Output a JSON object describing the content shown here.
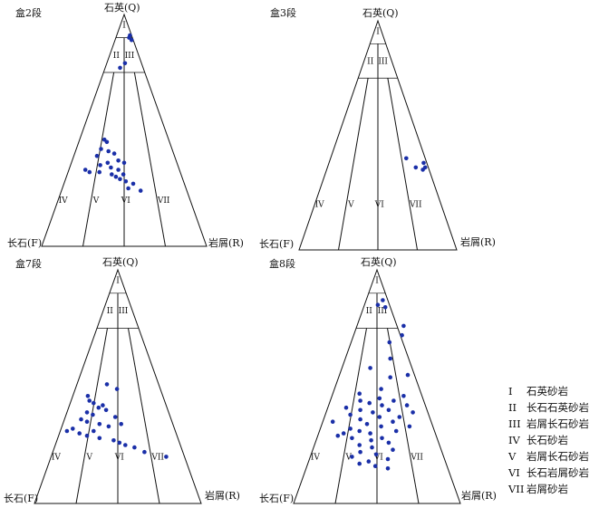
{
  "figure": {
    "corners": {
      "top": "石英(Q)",
      "left": "长石(F)",
      "right": "岩屑(R)"
    },
    "zones": [
      "I",
      "II",
      "III",
      "IV",
      "V",
      "VI",
      "VII"
    ]
  },
  "panels": [
    {
      "id": "p1",
      "title": "盒2段"
    },
    {
      "id": "p2",
      "title": "盒3段"
    },
    {
      "id": "p3",
      "title": "盒7段"
    },
    {
      "id": "p4",
      "title": "盒8段"
    }
  ],
  "legend": [
    {
      "code": "I",
      "name": "石英砂岩"
    },
    {
      "code": "II",
      "name": "长石石英砂岩"
    },
    {
      "code": "III",
      "name": "岩屑长石砂岩"
    },
    {
      "code": "IV",
      "name": "长石砂岩"
    },
    {
      "code": "V",
      "name": "岩屑长石砂岩"
    },
    {
      "code": "VI",
      "name": "长石岩屑砂岩"
    },
    {
      "code": "VII",
      "name": "岩屑砂岩"
    }
  ],
  "chart_data": [
    {
      "type": "scatter",
      "title": "盒2段",
      "axes": [
        "Q",
        "F",
        "R"
      ],
      "point_color": "#1a2fa8",
      "points_QR": [
        [
          0.91,
          0.08
        ],
        [
          0.89,
          0.1
        ],
        [
          0.9,
          0.08
        ],
        [
          0.79,
          0.11
        ],
        [
          0.77,
          0.09
        ],
        [
          0.46,
          0.15
        ],
        [
          0.45,
          0.17
        ],
        [
          0.41,
          0.2
        ],
        [
          0.42,
          0.15
        ],
        [
          0.4,
          0.24
        ],
        [
          0.39,
          0.14
        ],
        [
          0.37,
          0.28
        ],
        [
          0.36,
          0.32
        ],
        [
          0.36,
          0.22
        ],
        [
          0.35,
          0.18
        ],
        [
          0.34,
          0.25
        ],
        [
          0.33,
          0.1
        ],
        [
          0.33,
          0.3
        ],
        [
          0.32,
          0.19
        ],
        [
          0.31,
          0.27
        ],
        [
          0.31,
          0.34
        ],
        [
          0.3,
          0.3
        ],
        [
          0.29,
          0.33
        ],
        [
          0.28,
          0.37
        ],
        [
          0.27,
          0.42
        ],
        [
          0.25,
          0.4
        ],
        [
          0.24,
          0.48
        ],
        [
          0.32,
          0.13
        ]
      ]
    },
    {
      "type": "scatter",
      "title": "盒3段",
      "axes": [
        "Q",
        "F",
        "R"
      ],
      "point_color": "#1a2fa8",
      "points_QR": [
        [
          0.4,
          0.48
        ],
        [
          0.36,
          0.56
        ],
        [
          0.35,
          0.61
        ],
        [
          0.36,
          0.62
        ],
        [
          0.38,
          0.6
        ]
      ]
    },
    {
      "type": "scatter",
      "title": "盒7段",
      "axes": [
        "Q",
        "F",
        "R"
      ],
      "point_color": "#1a2fa8",
      "points_QR": [
        [
          0.51,
          0.18
        ],
        [
          0.49,
          0.25
        ],
        [
          0.46,
          0.09
        ],
        [
          0.44,
          0.11
        ],
        [
          0.43,
          0.14
        ],
        [
          0.42,
          0.2
        ],
        [
          0.41,
          0.18
        ],
        [
          0.4,
          0.23
        ],
        [
          0.39,
          0.12
        ],
        [
          0.38,
          0.16
        ],
        [
          0.37,
          0.3
        ],
        [
          0.35,
          0.14
        ],
        [
          0.34,
          0.22
        ],
        [
          0.33,
          0.28
        ],
        [
          0.32,
          0.07
        ],
        [
          0.31,
          0.2
        ],
        [
          0.3,
          0.12
        ],
        [
          0.29,
          0.17
        ],
        [
          0.28,
          0.25
        ],
        [
          0.27,
          0.34
        ],
        [
          0.26,
          0.38
        ],
        [
          0.25,
          0.42
        ],
        [
          0.24,
          0.48
        ],
        [
          0.22,
          0.55
        ],
        [
          0.2,
          0.69
        ],
        [
          0.34,
          0.35
        ],
        [
          0.36,
          0.1
        ],
        [
          0.31,
          0.04
        ]
      ]
    },
    {
      "type": "scatter",
      "title": "盒8段",
      "axes": [
        "Q",
        "F",
        "R"
      ],
      "point_color": "#1a2fa8",
      "points_QR": [
        [
          0.87,
          0.1
        ],
        [
          0.85,
          0.08
        ],
        [
          0.84,
          0.13
        ],
        [
          0.76,
          0.28
        ],
        [
          0.72,
          0.29
        ],
        [
          0.69,
          0.23
        ],
        [
          0.62,
          0.27
        ],
        [
          0.58,
          0.17
        ],
        [
          0.55,
          0.41
        ],
        [
          0.54,
          0.31
        ],
        [
          0.49,
          0.28
        ],
        [
          0.47,
          0.16
        ],
        [
          0.46,
          0.43
        ],
        [
          0.45,
          0.29
        ],
        [
          0.44,
          0.18
        ],
        [
          0.43,
          0.24
        ],
        [
          0.42,
          0.32
        ],
        [
          0.42,
          0.47
        ],
        [
          0.41,
          0.11
        ],
        [
          0.4,
          0.37
        ],
        [
          0.4,
          0.2
        ],
        [
          0.39,
          0.52
        ],
        [
          0.39,
          0.28
        ],
        [
          0.38,
          0.15
        ],
        [
          0.37,
          0.33
        ],
        [
          0.36,
          0.22
        ],
        [
          0.35,
          0.42
        ],
        [
          0.35,
          0.06
        ],
        [
          0.34,
          0.27
        ],
        [
          0.33,
          0.36
        ],
        [
          0.32,
          0.18
        ],
        [
          0.31,
          0.46
        ],
        [
          0.31,
          0.24
        ],
        [
          0.3,
          0.31
        ],
        [
          0.29,
          0.12
        ],
        [
          0.28,
          0.39
        ],
        [
          0.28,
          0.21
        ],
        [
          0.27,
          0.33
        ],
        [
          0.26,
          0.44
        ],
        [
          0.25,
          0.27
        ],
        [
          0.24,
          0.35
        ],
        [
          0.23,
          0.48
        ],
        [
          0.22,
          0.29
        ],
        [
          0.21,
          0.39
        ],
        [
          0.2,
          0.25
        ],
        [
          0.19,
          0.47
        ],
        [
          0.18,
          0.36
        ],
        [
          0.17,
          0.31
        ],
        [
          0.16,
          0.41
        ],
        [
          0.15,
          0.49
        ],
        [
          0.33,
          0.53
        ],
        [
          0.37,
          0.45
        ],
        [
          0.44,
          0.38
        ],
        [
          0.3,
          0.15
        ]
      ]
    }
  ]
}
